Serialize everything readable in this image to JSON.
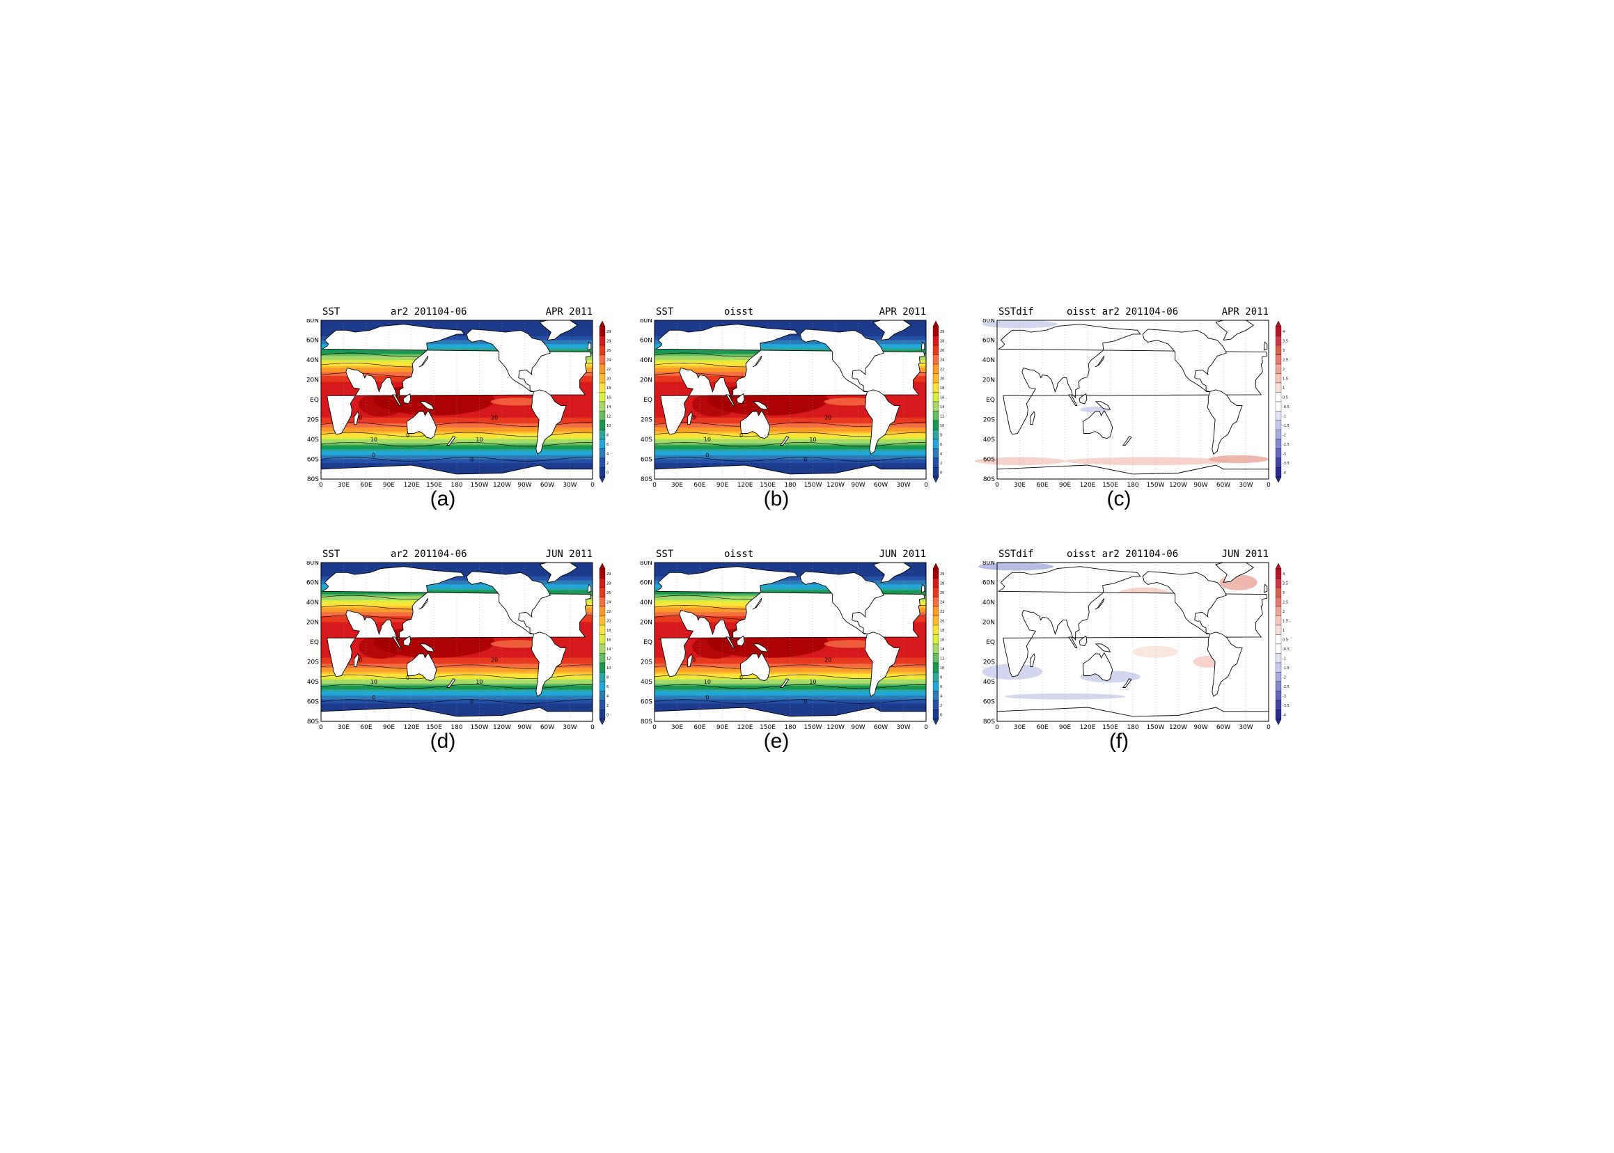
{
  "panels": [
    {
      "id": "a",
      "title_left": "SST",
      "title_mid": "ar2 201104-06",
      "title_right": "APR 2011",
      "caption": "(a)",
      "kind": "sst",
      "month": "APR"
    },
    {
      "id": "b",
      "title_left": "SST",
      "title_mid": "oisst",
      "title_right": "APR 2011",
      "caption": "(b)",
      "kind": "sst",
      "month": "APR"
    },
    {
      "id": "c",
      "title_left": "SSTdif",
      "title_mid": "oisst  ar2 201104-06",
      "title_right": "APR 2011",
      "caption": "(c)",
      "kind": "dif",
      "month": "APR"
    },
    {
      "id": "d",
      "title_left": "SST",
      "title_mid": "ar2 201104-06",
      "title_right": "JUN 2011",
      "caption": "(d)",
      "kind": "sst",
      "month": "JUN"
    },
    {
      "id": "e",
      "title_left": "SST",
      "title_mid": "oisst",
      "title_right": "JUN 2011",
      "caption": "(e)",
      "kind": "sst",
      "month": "JUN"
    },
    {
      "id": "f",
      "title_left": "SSTdif",
      "title_mid": "oisst  ar2 201104-06",
      "title_right": "JUN 2011",
      "caption": "(f)",
      "kind": "dif",
      "month": "JUN"
    }
  ],
  "lat_ticks": [
    "80N",
    "60N",
    "40N",
    "20N",
    "EQ",
    "20S",
    "40S",
    "60S",
    "80S"
  ],
  "lon_ticks": [
    "0",
    "30E",
    "60E",
    "90E",
    "120E",
    "150E",
    "180",
    "150W",
    "120W",
    "90W",
    "60W",
    "30W",
    "0"
  ],
  "sst_colorbar": {
    "labels": [
      "29",
      "28",
      "26",
      "24",
      "22",
      "20",
      "18",
      "16",
      "14",
      "12",
      "10",
      "8",
      "6",
      "4",
      "2",
      "0"
    ],
    "colors": [
      "#a50000",
      "#d7191c",
      "#e8381f",
      "#f46d43",
      "#fb9a29",
      "#fdbb2d",
      "#fee33b",
      "#d9ef3b",
      "#a6d96a",
      "#66bd63",
      "#1a9850",
      "#2ca7a0",
      "#21a8d8",
      "#2c7bb6",
      "#2550a8",
      "#1c3b8c"
    ]
  },
  "dif_colorbar": {
    "labels": [
      "4",
      "3.5",
      "3",
      "2.5",
      "2",
      "1.5",
      "1",
      "0.5",
      "-0.5",
      "-1",
      "-1.5",
      "-2",
      "-2.5",
      "-3",
      "-3.5",
      "-4"
    ],
    "colors": [
      "#b2182b",
      "#c8384a",
      "#d6604d",
      "#e07b72",
      "#eba69a",
      "#f4c7bd",
      "#fae0d8",
      "#ffffff",
      "#ffffff",
      "#dfe4f3",
      "#c6cbe9",
      "#a5acdb",
      "#8389c9",
      "#6166b5",
      "#4145a0",
      "#2a2d8a"
    ]
  },
  "contour_labels": {
    "sst": [
      "10",
      "20",
      "20",
      "10",
      "20",
      "10",
      "0",
      "0"
    ],
    "sst_positions_note": ""
  }
}
